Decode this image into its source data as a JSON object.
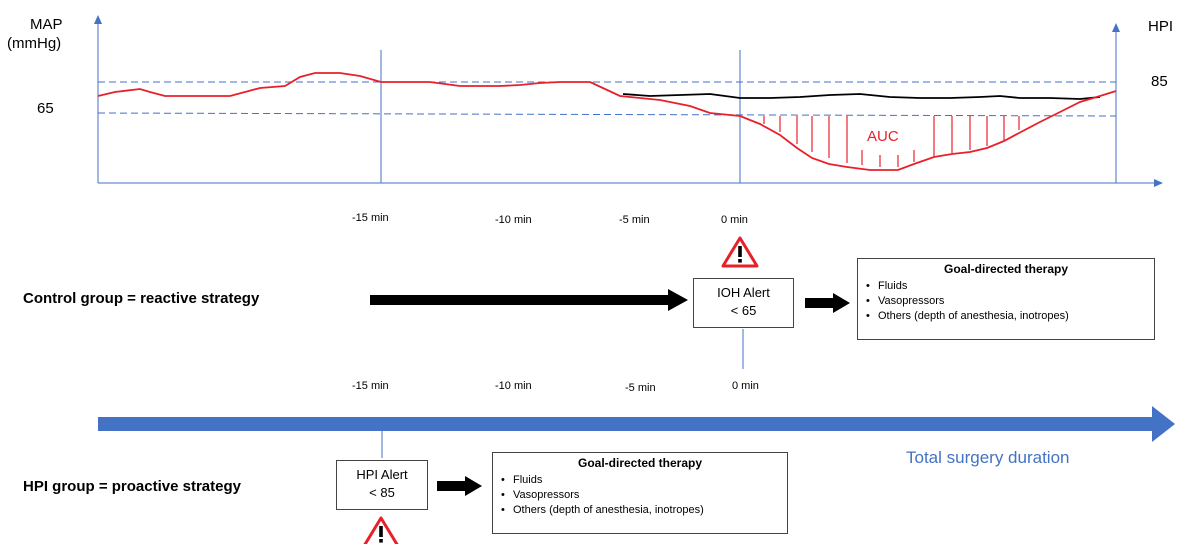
{
  "chart": {
    "left_axis_title_line1": "MAP",
    "left_axis_title_line2": "(mmHg)",
    "right_axis_title": "HPI",
    "left_reference_value": "65",
    "right_reference_value": "85",
    "auc_label": "AUC",
    "time_ticks": [
      "-15 min",
      "-10 min",
      "-5 min",
      "0 min"
    ]
  },
  "control": {
    "label": "Control group = reactive strategy",
    "alert_line1": "IOH Alert",
    "alert_line2": "< 65",
    "therapy_title": "Goal-directed therapy",
    "therapy_items": [
      "Fluids",
      "Vasopressors",
      "Others (depth of anesthesia, inotropes)"
    ],
    "time_ticks": [
      "-15 min",
      "-10 min",
      "-5 min",
      "0 min"
    ]
  },
  "timeline": {
    "label": "Total surgery duration"
  },
  "hpi": {
    "label": "HPI group = proactive strategy",
    "alert_line1": "HPI Alert",
    "alert_line2": "< 85",
    "therapy_title": "Goal-directed therapy",
    "therapy_items": [
      "Fluids",
      "Vasopressors",
      "Others (depth of anesthesia, inotropes)"
    ]
  },
  "colors": {
    "map_line": "#e8202a",
    "hpi_line": "#000000",
    "axis": "#4472c4",
    "threshold": "#4472c4",
    "timeline_arrow": "#4472c4"
  },
  "icons": [
    "warning-icon",
    "arrow-right-icon"
  ]
}
